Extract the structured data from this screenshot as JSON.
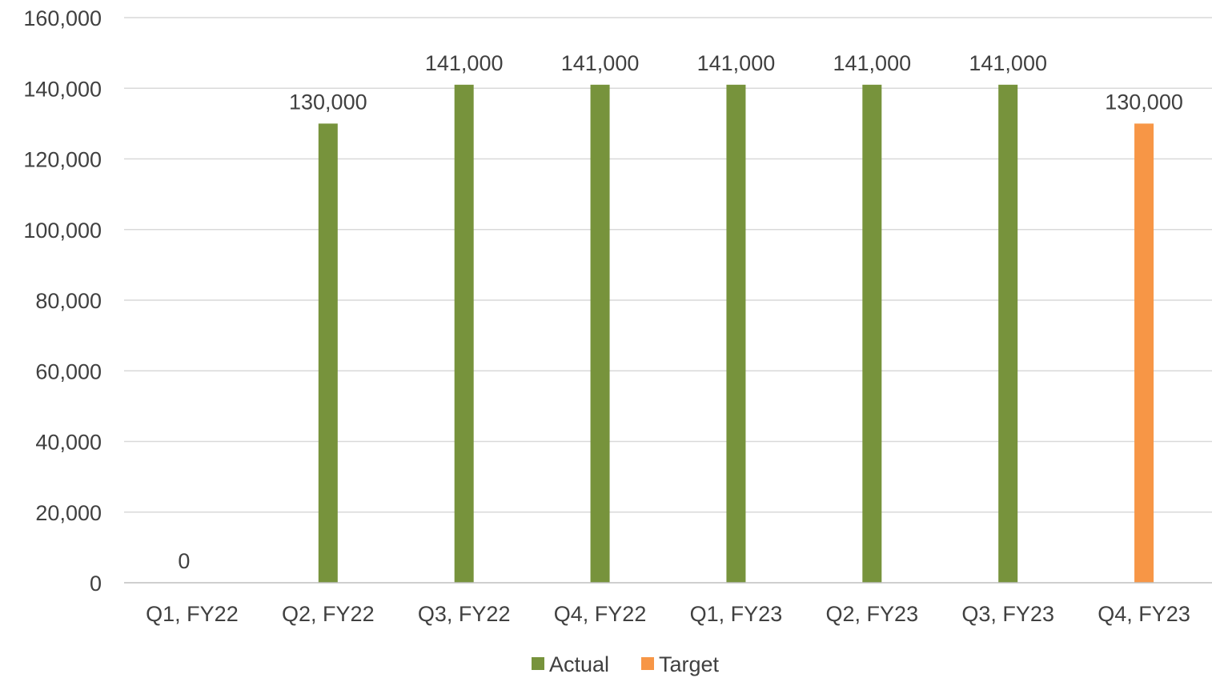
{
  "chart_data": {
    "type": "bar",
    "categories": [
      "Q1, FY22",
      "Q2, FY22",
      "Q3, FY22",
      "Q4, FY22",
      "Q1, FY23",
      "Q2, FY23",
      "Q3, FY23",
      "Q4, FY23"
    ],
    "series": [
      {
        "name": "Actual",
        "color": "#77933C",
        "values": [
          0,
          130000,
          141000,
          141000,
          141000,
          141000,
          141000,
          null
        ]
      },
      {
        "name": "Target",
        "color": "#F79646",
        "values": [
          null,
          null,
          null,
          null,
          null,
          null,
          null,
          130000
        ]
      }
    ],
    "data_labels": [
      "0",
      "130,000",
      "141,000",
      "141,000",
      "141,000",
      "141,000",
      "141,000",
      "130,000"
    ],
    "y_tick_labels": [
      "0",
      "20,000",
      "40,000",
      "60,000",
      "80,000",
      "100,000",
      "120,000",
      "140,000",
      "160,000"
    ],
    "ylim": [
      0,
      160000
    ],
    "grid": true,
    "legend_position": "bottom",
    "gridline_color": "#D9D9D9",
    "axis_color": "#BFBFBF",
    "text_color": "#404040"
  }
}
